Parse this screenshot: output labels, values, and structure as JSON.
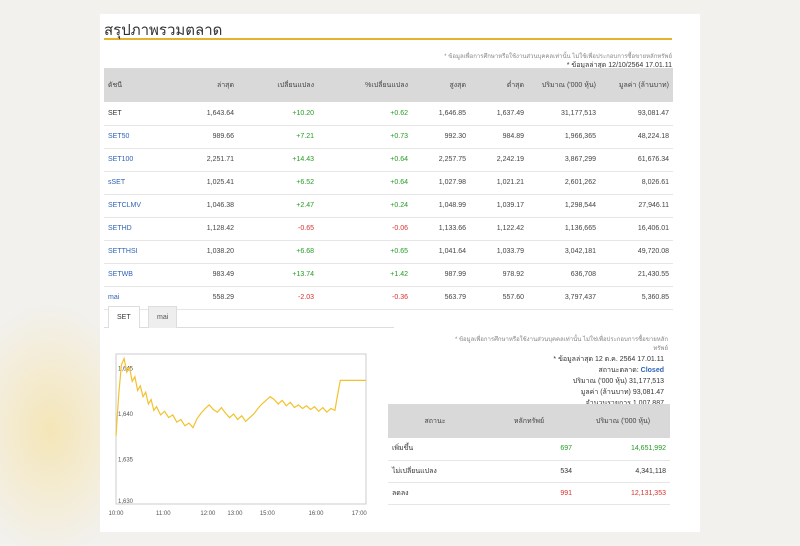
{
  "title": "สรุปภาพรวมตลาด",
  "top_note": "* ข้อมูลเพื่อการศึกษาหรือใช้งานส่วนบุคคลเท่านั้น ไม่ใช้เพื่อประกอบการซื้อขายหลักทรัพย์",
  "top_updated": "* ข้อมูลล่าสุด 12/10/2564 17.01.11",
  "table": {
    "headers": [
      "ดัชนี",
      "ล่าสุด",
      "เปลี่ยนแปลง",
      "%เปลี่ยนแปลง",
      "สูงสุด",
      "ต่ำสุด",
      "ปริมาณ ('000 หุ้น)",
      "มูลค่า (ล้านบาท)"
    ],
    "rows": [
      [
        "SET",
        "1,643.64",
        "+10.20",
        "+0.62",
        "1,646.85",
        "1,637.49",
        "31,177,513",
        "93,081.47"
      ],
      [
        "SET50",
        "989.66",
        "+7.21",
        "+0.73",
        "992.30",
        "984.89",
        "1,966,365",
        "48,224.18"
      ],
      [
        "SET100",
        "2,251.71",
        "+14.43",
        "+0.64",
        "2,257.75",
        "2,242.19",
        "3,867,299",
        "61,676.34"
      ],
      [
        "sSET",
        "1,025.41",
        "+6.52",
        "+0.64",
        "1,027.98",
        "1,021.21",
        "2,601,262",
        "8,026.61"
      ],
      [
        "SETCLMV",
        "1,046.38",
        "+2.47",
        "+0.24",
        "1,048.99",
        "1,039.17",
        "1,298,544",
        "27,946.11"
      ],
      [
        "SETHD",
        "1,128.42",
        "-0.65",
        "-0.06",
        "1,133.66",
        "1,122.42",
        "1,136,665",
        "16,406.01"
      ],
      [
        "SETTHSI",
        "1,038.20",
        "+6.68",
        "+0.65",
        "1,041.64",
        "1,033.79",
        "3,042,181",
        "49,720.08"
      ],
      [
        "SETWB",
        "983.49",
        "+13.74",
        "+1.42",
        "987.99",
        "978.92",
        "636,708",
        "21,430.55"
      ],
      [
        "mai",
        "558.29",
        "-2.03",
        "-0.36",
        "563.79",
        "557.60",
        "3,797,437",
        "5,360.85"
      ]
    ]
  },
  "tabs": [
    {
      "label": "SET",
      "active": true
    },
    {
      "label": "mai",
      "active": false
    }
  ],
  "right_note_line1": "* ข้อมูลเพื่อการศึกษาหรือใช้งานส่วนบุคคลเท่านั้น ไม่ใช่เพื่อประกอบการซื้อขายหลัก",
  "right_note_line2": "ทรัพย์",
  "right_updated": "* ข้อมูลล่าสุด 12 ต.ค. 2564 17.01.11",
  "market_status_label": "สถานะตลาด:",
  "market_status_value": "Closed",
  "volume_label": "ปริมาณ ('000 หุ้น)",
  "volume_value": "31,177,513",
  "value_label": "มูลค่า (ล้านบาท)",
  "value_value": "93,081.47",
  "trades_label": "จำนวนรายการ",
  "trades_value": "1,007,887",
  "summary": {
    "headers": [
      "สถานะ",
      "หลักทรัพย์",
      "ปริมาณ ('000 หุ้น)"
    ],
    "rows": [
      {
        "status": "เพิ่มขึ้น",
        "count": "697",
        "volume": "14,651,992",
        "color": "#239a23"
      },
      {
        "status": "ไม่เปลี่ยนแปลง",
        "count": "534",
        "volume": "4,341,118",
        "color": "#333333"
      },
      {
        "status": "ลดลง",
        "count": "991",
        "volume": "12,131,353",
        "color": "#d4332f"
      }
    ]
  },
  "chart_data": {
    "type": "line",
    "color": "#f2c22e",
    "y_ticks": [
      "1,645",
      "1,640",
      "1,635",
      "1,630"
    ],
    "x_ticks": [
      "10:00",
      "11:00",
      "12:00",
      "13:00",
      "15:00",
      "16:00",
      "17:00"
    ],
    "ylim": [
      1630,
      1646.5
    ],
    "points": [
      [
        0,
        1637.5
      ],
      [
        2,
        1642.0
      ],
      [
        4,
        1645.3
      ],
      [
        6,
        1646.0
      ],
      [
        8,
        1644.5
      ],
      [
        10,
        1645.0
      ],
      [
        12,
        1643.5
      ],
      [
        14,
        1644.0
      ],
      [
        16,
        1642.5
      ],
      [
        18,
        1643.0
      ],
      [
        20,
        1641.8
      ],
      [
        22,
        1642.3
      ],
      [
        24,
        1641.0
      ],
      [
        26,
        1641.5
      ],
      [
        28,
        1640.3
      ],
      [
        30,
        1640.7
      ],
      [
        33,
        1639.8
      ],
      [
        36,
        1640.2
      ],
      [
        39,
        1639.5
      ],
      [
        42,
        1639.8
      ],
      [
        45,
        1639.0
      ],
      [
        48,
        1639.3
      ],
      [
        51,
        1638.6
      ],
      [
        54,
        1638.9
      ],
      [
        57,
        1638.4
      ],
      [
        60,
        1639.4
      ],
      [
        63,
        1640.0
      ],
      [
        66,
        1640.5
      ],
      [
        69,
        1640.9
      ],
      [
        72,
        1640.4
      ],
      [
        75,
        1640.1
      ],
      [
        78,
        1640.6
      ],
      [
        81,
        1640.0
      ],
      [
        84,
        1639.5
      ],
      [
        87,
        1639.9
      ],
      [
        90,
        1639.3
      ],
      [
        93,
        1639.7
      ],
      [
        96,
        1639.1
      ],
      [
        99,
        1639.5
      ],
      [
        102,
        1639.9
      ],
      [
        105,
        1640.5
      ],
      [
        108,
        1641.0
      ],
      [
        111,
        1641.4
      ],
      [
        114,
        1641.8
      ],
      [
        117,
        1641.5
      ],
      [
        120,
        1641.0
      ],
      [
        123,
        1641.4
      ],
      [
        126,
        1640.8
      ],
      [
        129,
        1641.2
      ],
      [
        132,
        1640.6
      ],
      [
        135,
        1640.9
      ],
      [
        138,
        1640.5
      ],
      [
        141,
        1640.8
      ],
      [
        144,
        1640.4
      ],
      [
        147,
        1640.7
      ],
      [
        150,
        1640.2
      ],
      [
        153,
        1640.6
      ],
      [
        156,
        1640.1
      ],
      [
        159,
        1640.5
      ],
      [
        162,
        1640.3
      ],
      [
        164,
        1642.0
      ],
      [
        166,
        1643.6
      ],
      [
        170,
        1643.6
      ],
      [
        175,
        1643.6
      ],
      [
        180,
        1643.6
      ],
      [
        185,
        1643.6
      ]
    ]
  }
}
